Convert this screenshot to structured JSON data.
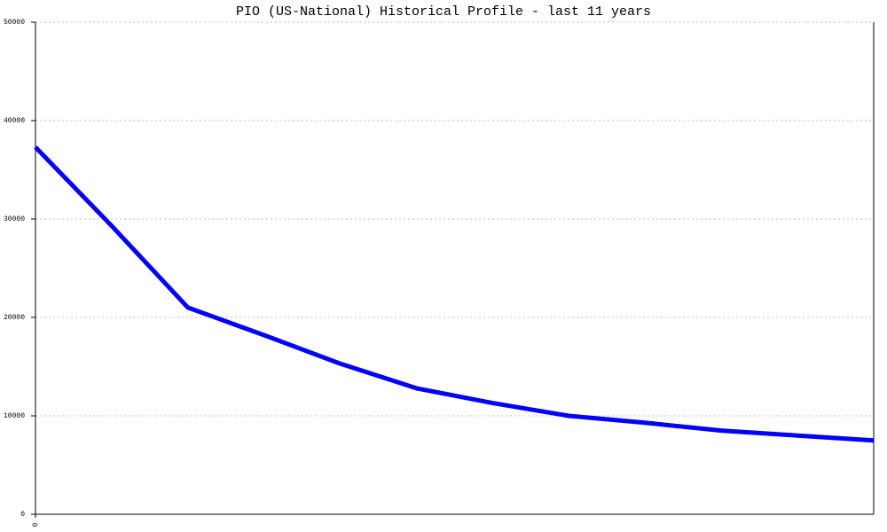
{
  "chart_data": {
    "type": "line",
    "title": "PIO (US-National) Historical Profile - last 11 years",
    "x": [
      0,
      1,
      2,
      3,
      4,
      5,
      6,
      7,
      8,
      9,
      10,
      11
    ],
    "series": [
      {
        "color": "#0000ff",
        "values": [
          37300,
          29300,
          21000,
          18200,
          15300,
          12800,
          11300,
          10000,
          9300,
          8500,
          8000,
          7500
        ]
      }
    ],
    "xlim": [
      0,
      11
    ],
    "xticks": [
      0
    ],
    "ylim": [
      0,
      50000
    ],
    "yticks": [
      0,
      10000,
      20000,
      30000,
      40000,
      50000
    ],
    "grid": true
  }
}
